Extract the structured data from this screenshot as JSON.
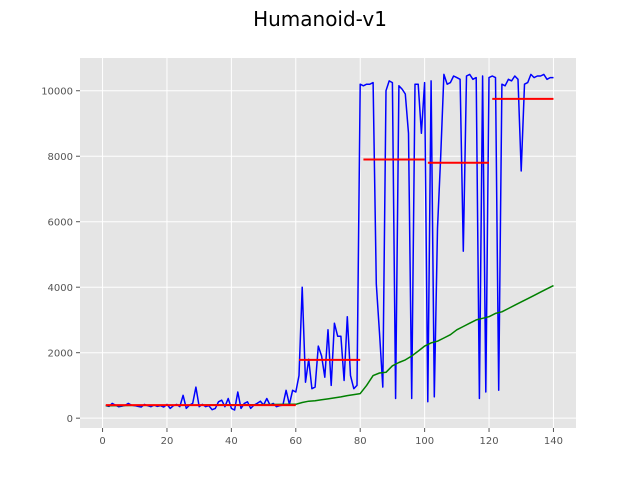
{
  "chart_data": {
    "type": "line",
    "title": "Humanoid-v1",
    "xlabel": "",
    "ylabel": "",
    "xlim": [
      -7,
      147
    ],
    "ylim": [
      -300,
      11000
    ],
    "grid": true,
    "legend": "none",
    "x_ticks": [
      0,
      20,
      40,
      60,
      80,
      100,
      120,
      140
    ],
    "y_ticks": [
      0,
      2000,
      4000,
      6000,
      8000,
      10000
    ],
    "series": [
      {
        "color": "#0000ff",
        "x": [
          1,
          2,
          3,
          4,
          5,
          6,
          7,
          8,
          9,
          10,
          11,
          12,
          13,
          14,
          15,
          16,
          17,
          18,
          19,
          20,
          21,
          22,
          23,
          24,
          25,
          26,
          27,
          28,
          29,
          30,
          31,
          32,
          33,
          34,
          35,
          36,
          37,
          38,
          39,
          40,
          41,
          42,
          43,
          44,
          45,
          46,
          47,
          48,
          49,
          50,
          51,
          52,
          53,
          54,
          55,
          56,
          57,
          58,
          59,
          60,
          61,
          62,
          63,
          64,
          65,
          66,
          67,
          68,
          69,
          70,
          71,
          72,
          73,
          74,
          75,
          76,
          77,
          78,
          79,
          80,
          81,
          82,
          83,
          84,
          85,
          86,
          87,
          88,
          89,
          90,
          91,
          92,
          93,
          94,
          95,
          96,
          97,
          98,
          99,
          100,
          101,
          102,
          103,
          104,
          105,
          106,
          107,
          108,
          109,
          110,
          111,
          112,
          113,
          114,
          115,
          116,
          117,
          118,
          119,
          120,
          121,
          122,
          123,
          124,
          125,
          126,
          127,
          128,
          129,
          130,
          131,
          132,
          133,
          134,
          135,
          136,
          137,
          138,
          139,
          140
        ],
        "y": [
          380,
          360,
          450,
          400,
          350,
          370,
          390,
          450,
          400,
          380,
          360,
          340,
          420,
          380,
          350,
          400,
          360,
          380,
          340,
          420,
          300,
          380,
          420,
          350,
          700,
          300,
          400,
          450,
          950,
          350,
          420,
          350,
          380,
          260,
          300,
          500,
          550,
          350,
          600,
          300,
          250,
          800,
          300,
          450,
          500,
          300,
          400,
          450,
          520,
          400,
          600,
          400,
          450,
          350,
          380,
          400,
          850,
          420,
          850,
          800,
          1300,
          4000,
          1100,
          1800,
          900,
          950,
          2200,
          1900,
          1250,
          2700,
          1000,
          2900,
          2500,
          2500,
          1150,
          3100,
          1300,
          900,
          1000,
          10200,
          10150,
          10200,
          10200,
          10250,
          4100,
          2600,
          950,
          10000,
          10300,
          10250,
          600,
          10150,
          10050,
          9900,
          8700,
          600,
          10200,
          10200,
          8700,
          10250,
          500,
          10300,
          650,
          5800,
          8000,
          10500,
          10200,
          10250,
          10450,
          10400,
          10350,
          5100,
          10450,
          10500,
          10350,
          10400,
          600,
          10450,
          800,
          10400,
          10450,
          10400,
          850,
          10200,
          10150,
          10350,
          10300,
          10450,
          10350,
          7550,
          10200,
          10250,
          10500,
          10400,
          10450,
          10450,
          10500,
          10350,
          10400,
          10400
        ]
      },
      {
        "color": "#008000",
        "x": [
          1,
          5,
          10,
          15,
          20,
          25,
          30,
          35,
          40,
          45,
          50,
          55,
          60,
          62,
          64,
          66,
          68,
          70,
          72,
          74,
          76,
          78,
          80,
          82,
          84,
          86,
          88,
          90,
          92,
          94,
          96,
          98,
          100,
          102,
          104,
          106,
          108,
          110,
          112,
          114,
          116,
          118,
          120,
          122,
          124,
          126,
          128,
          130,
          132,
          134,
          136,
          138,
          140
        ],
        "y": [
          380,
          385,
          390,
          390,
          395,
          400,
          400,
          405,
          410,
          410,
          415,
          420,
          425,
          480,
          520,
          530,
          560,
          590,
          620,
          650,
          690,
          720,
          750,
          1000,
          1300,
          1380,
          1400,
          1600,
          1700,
          1780,
          1900,
          2050,
          2200,
          2300,
          2350,
          2450,
          2550,
          2700,
          2800,
          2900,
          3000,
          3050,
          3100,
          3200,
          3250,
          3350,
          3450,
          3550,
          3650,
          3750,
          3850,
          3950,
          4050
        ]
      }
    ],
    "segments": [
      {
        "color": "#ff0000",
        "x0": 1,
        "x1": 60,
        "y": 400
      },
      {
        "color": "#ff0000",
        "x0": 61,
        "x1": 80,
        "y": 1780
      },
      {
        "color": "#ff0000",
        "x0": 81,
        "x1": 100,
        "y": 7900
      },
      {
        "color": "#ff0000",
        "x0": 101,
        "x1": 120,
        "y": 7800
      },
      {
        "color": "#ff0000",
        "x0": 121,
        "x1": 140,
        "y": 9750
      }
    ]
  }
}
